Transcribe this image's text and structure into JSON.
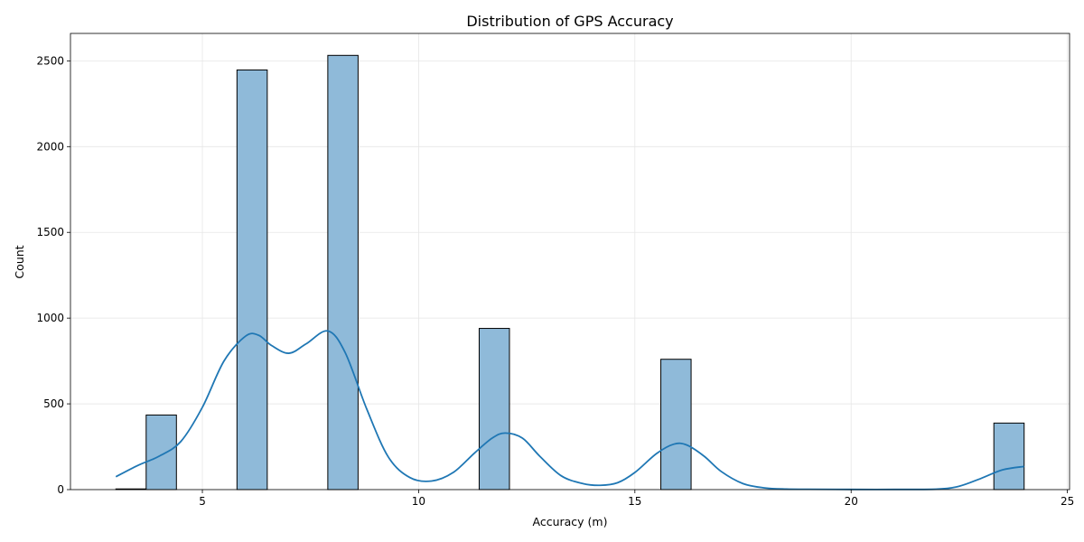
{
  "chart_data": {
    "type": "bar",
    "title": "Distribution of GPS Accuracy",
    "xlabel": "Accuracy (m)",
    "ylabel": "Count",
    "xlim": [
      1.95,
      25.05
    ],
    "ylim": [
      0,
      2660
    ],
    "xticks": [
      5,
      10,
      15,
      20,
      25
    ],
    "yticks": [
      0,
      500,
      1000,
      1500,
      2000,
      2500
    ],
    "grid": true,
    "colors": {
      "bar_fill": "#8fbad9",
      "kde_line": "#1f77b4"
    },
    "bins": [
      {
        "x0": 3.0,
        "x1": 3.7,
        "count": 4
      },
      {
        "x0": 3.7,
        "x1": 4.4,
        "count": 435
      },
      {
        "x0": 5.8,
        "x1": 6.5,
        "count": 2447
      },
      {
        "x0": 7.9,
        "x1": 8.6,
        "count": 2532
      },
      {
        "x0": 11.4,
        "x1": 12.1,
        "count": 940
      },
      {
        "x0": 15.6,
        "x1": 16.3,
        "count": 760
      },
      {
        "x0": 23.3,
        "x1": 24.0,
        "count": 388
      }
    ],
    "kde": {
      "x": [
        3.0,
        3.5,
        4.0,
        4.5,
        5.0,
        5.5,
        6.0,
        6.3,
        6.6,
        7.0,
        7.4,
        7.9,
        8.3,
        8.8,
        9.3,
        9.8,
        10.3,
        10.8,
        11.3,
        11.7,
        12.0,
        12.4,
        12.8,
        13.3,
        13.8,
        14.2,
        14.6,
        15.0,
        15.5,
        15.9,
        16.2,
        16.6,
        17.0,
        17.5,
        18.0,
        18.5,
        19.0,
        20.0,
        21.0,
        22.0,
        22.5,
        23.0,
        23.5,
        24.0
      ],
      "y": [
        75,
        140,
        195,
        280,
        480,
        750,
        895,
        900,
        840,
        795,
        850,
        925,
        800,
        470,
        190,
        70,
        50,
        100,
        215,
        300,
        330,
        300,
        195,
        80,
        35,
        25,
        40,
        100,
        210,
        265,
        260,
        195,
        105,
        35,
        10,
        3,
        2,
        1,
        1,
        3,
        20,
        65,
        115,
        135
      ]
    }
  }
}
